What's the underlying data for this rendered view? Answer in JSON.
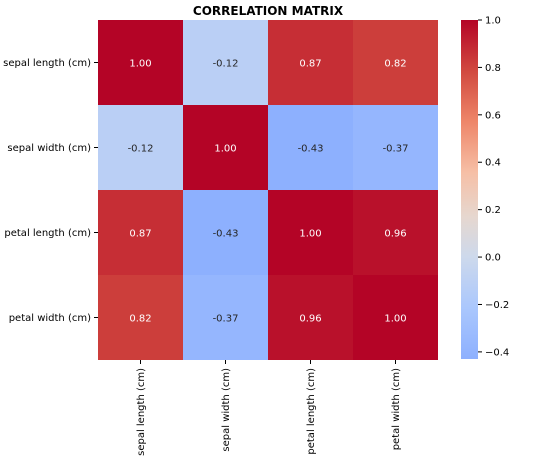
{
  "chart_data": {
    "type": "heatmap",
    "title": "CORRELATION MATRIX",
    "row_labels": [
      "sepal length (cm)",
      "sepal width (cm)",
      "petal length (cm)",
      "petal width (cm)"
    ],
    "col_labels": [
      "sepal length (cm)",
      "sepal width (cm)",
      "petal length (cm)",
      "petal width (cm)"
    ],
    "values": [
      [
        1.0,
        -0.12,
        0.87,
        0.82
      ],
      [
        -0.12,
        1.0,
        -0.43,
        -0.37
      ],
      [
        0.87,
        -0.43,
        1.0,
        0.96
      ],
      [
        0.82,
        -0.37,
        0.96,
        1.0
      ]
    ],
    "colormap": "coolwarm",
    "colorbar": {
      "range": [
        -0.43,
        1.0
      ],
      "ticks": [
        1.0,
        0.8,
        0.6,
        0.4,
        0.2,
        0.0,
        -0.2,
        -0.4
      ],
      "tick_labels": [
        "1.0",
        "0.8",
        "0.6",
        "0.4",
        "0.2",
        "0.0",
        "−0.2",
        "−0.4"
      ]
    },
    "annotation_format": "0.00"
  }
}
